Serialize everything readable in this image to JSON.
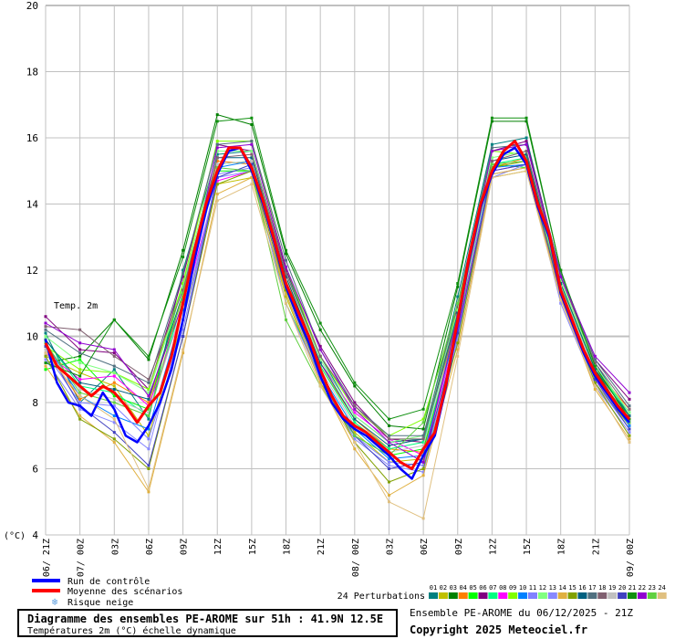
{
  "chart_data": {
    "type": "line",
    "title": "Diagramme des ensembles PE-AROME sur 51h : 41.9N 12.5E",
    "subtitle": "Températures 2m (°C) échelle dynamique",
    "series_label": "Temp. 2m",
    "ylabel": "(°C)",
    "ylim": [
      4,
      20
    ],
    "yticks": [
      4,
      6,
      8,
      10,
      12,
      14,
      16,
      18,
      20
    ],
    "grid": true,
    "xticks": [
      "06/ 21Z",
      "07/ 00Z",
      "03Z",
      "06Z",
      "09Z",
      "12Z",
      "15Z",
      "18Z",
      "21Z",
      "08/ 00Z",
      "03Z",
      "06Z",
      "09Z",
      "12Z",
      "15Z",
      "18Z",
      "21Z",
      "09/ 00Z"
    ],
    "x_hours_range": [
      0,
      51
    ],
    "mean": {
      "name": "Moyenne des scénarios",
      "color": "#ff0000",
      "step_hours": 1,
      "values": [
        9.8,
        9.1,
        8.8,
        8.5,
        8.2,
        8.5,
        8.3,
        7.9,
        7.4,
        7.9,
        8.3,
        9.4,
        11.0,
        12.6,
        14.0,
        15.0,
        15.7,
        15.7,
        15.1,
        14.1,
        12.9,
        11.6,
        10.8,
        10.0,
        9.0,
        8.2,
        7.6,
        7.3,
        7.1,
        6.8,
        6.5,
        6.2,
        6.0,
        6.6,
        7.1,
        8.6,
        10.5,
        12.4,
        14.0,
        15.0,
        15.6,
        15.9,
        15.3,
        14.0,
        13.1,
        11.4,
        10.5,
        9.6,
        8.9,
        8.4,
        7.9,
        7.5
      ]
    },
    "control": {
      "name": "Run de contrôle",
      "color": "#0000ff",
      "step_hours": 1,
      "values": [
        9.9,
        8.6,
        8.0,
        7.9,
        7.6,
        8.3,
        7.8,
        7.0,
        6.8,
        7.3,
        8.0,
        9.0,
        10.5,
        12.3,
        13.8,
        14.9,
        15.6,
        15.7,
        15.0,
        14.0,
        12.8,
        11.5,
        10.6,
        9.8,
        8.8,
        8.0,
        7.5,
        7.2,
        7.0,
        6.7,
        6.4,
        6.0,
        5.7,
        6.4,
        7.0,
        8.5,
        10.4,
        12.3,
        13.9,
        14.9,
        15.5,
        15.7,
        15.2,
        13.9,
        13.0,
        11.3,
        10.4,
        9.5,
        8.8,
        8.3,
        7.8,
        7.4
      ]
    },
    "perturbations_label": "24 Perturbations",
    "perturbations": [
      {
        "name": "01",
        "color": "#008080",
        "values": [
          10.1,
          8.0,
          9.0,
          7.5,
          12.0,
          15.5,
          15.6,
          12.0,
          9.4,
          7.6,
          6.8,
          6.9,
          11.2,
          15.8,
          16.0,
          11.8,
          9.2,
          7.6
        ]
      },
      {
        "name": "02",
        "color": "#c0c000",
        "values": [
          9.4,
          8.9,
          8.5,
          7.0,
          10.5,
          14.6,
          14.8,
          11.2,
          8.6,
          7.1,
          6.2,
          6.3,
          10.0,
          14.8,
          15.0,
          11.2,
          8.6,
          7.3
        ]
      },
      {
        "name": "03",
        "color": "#008000",
        "values": [
          9.2,
          9.4,
          10.5,
          9.3,
          12.6,
          16.7,
          16.4,
          12.5,
          10.2,
          8.5,
          7.3,
          7.2,
          11.5,
          16.5,
          16.5,
          12.0,
          9.0,
          7.4
        ]
      },
      {
        "name": "04",
        "color": "#ff8000",
        "values": [
          9.6,
          8.1,
          8.6,
          8.0,
          11.2,
          15.3,
          15.2,
          11.8,
          9.1,
          7.5,
          6.6,
          6.5,
          10.6,
          15.1,
          15.4,
          11.6,
          9.0,
          7.8
        ]
      },
      {
        "name": "05",
        "color": "#00ff00",
        "values": [
          9.0,
          9.3,
          8.2,
          7.8,
          11.6,
          15.0,
          15.0,
          11.0,
          8.8,
          7.0,
          6.4,
          6.6,
          10.3,
          15.2,
          15.1,
          11.3,
          8.8,
          7.6
        ]
      },
      {
        "name": "06",
        "color": "#800080",
        "values": [
          10.6,
          9.6,
          9.5,
          8.4,
          11.8,
          15.8,
          15.6,
          12.0,
          9.7,
          8.0,
          6.9,
          6.8,
          10.9,
          15.6,
          15.9,
          11.9,
          9.3,
          8.1
        ]
      },
      {
        "name": "07",
        "color": "#00ff80",
        "values": [
          9.9,
          8.5,
          8.3,
          7.6,
          11.1,
          15.2,
          15.3,
          11.6,
          9.1,
          7.4,
          6.6,
          6.8,
          10.6,
          15.2,
          15.4,
          11.5,
          9.0,
          7.7
        ]
      },
      {
        "name": "08",
        "color": "#ff00ff",
        "values": [
          9.5,
          8.7,
          8.8,
          7.9,
          10.8,
          14.7,
          15.0,
          11.4,
          9.2,
          7.7,
          6.9,
          6.4,
          10.2,
          15.0,
          15.2,
          11.3,
          8.7,
          7.4
        ]
      },
      {
        "name": "09",
        "color": "#80ff00",
        "values": [
          9.7,
          9.0,
          8.9,
          8.4,
          11.6,
          15.9,
          15.9,
          12.1,
          9.4,
          7.8,
          7.0,
          7.5,
          10.8,
          15.6,
          15.5,
          11.6,
          9.0,
          7.6
        ]
      },
      {
        "name": "10",
        "color": "#0080ff",
        "values": [
          9.8,
          8.2,
          7.6,
          7.2,
          10.8,
          15.1,
          15.3,
          11.5,
          8.9,
          7.2,
          6.3,
          6.4,
          10.4,
          15.1,
          15.2,
          11.4,
          8.8,
          7.3
        ]
      },
      {
        "name": "11",
        "color": "#8080ff",
        "values": [
          9.5,
          8.0,
          7.9,
          6.9,
          10.2,
          14.9,
          15.1,
          11.3,
          8.7,
          7.0,
          6.2,
          6.1,
          10.0,
          14.9,
          15.1,
          11.1,
          8.6,
          7.2
        ]
      },
      {
        "name": "12",
        "color": "#80ff80",
        "values": [
          10.0,
          9.2,
          8.9,
          8.3,
          11.5,
          15.6,
          15.6,
          11.9,
          9.3,
          7.6,
          6.8,
          7.0,
          10.8,
          15.4,
          15.6,
          11.7,
          9.1,
          7.7
        ]
      },
      {
        "name": "13",
        "color": "#8888ff",
        "values": [
          9.3,
          7.8,
          7.4,
          6.6,
          10.5,
          14.8,
          15.0,
          11.0,
          8.7,
          6.9,
          6.1,
          5.9,
          9.9,
          14.8,
          15.2,
          11.0,
          8.5,
          7.1
        ]
      },
      {
        "name": "14",
        "color": "#e0b040",
        "values": [
          9.1,
          7.6,
          6.8,
          5.3,
          9.5,
          14.3,
          14.8,
          11.3,
          8.6,
          6.6,
          5.2,
          5.8,
          9.6,
          14.9,
          15.1,
          11.2,
          8.4,
          6.9
        ]
      },
      {
        "name": "15",
        "color": "#80a000",
        "values": [
          9.4,
          7.5,
          6.9,
          6.0,
          10.0,
          14.6,
          15.0,
          11.4,
          8.8,
          6.8,
          5.6,
          6.0,
          9.8,
          15.1,
          15.3,
          11.3,
          8.6,
          7.0
        ]
      },
      {
        "name": "16",
        "color": "#006080",
        "values": [
          9.9,
          8.6,
          8.4,
          8.1,
          11.3,
          15.4,
          15.4,
          11.8,
          9.2,
          7.5,
          6.7,
          6.9,
          10.7,
          15.3,
          15.5,
          11.6,
          9.0,
          7.6
        ]
      },
      {
        "name": "17",
        "color": "#507080",
        "values": [
          10.2,
          9.5,
          9.1,
          8.6,
          11.9,
          15.8,
          15.9,
          12.3,
          9.6,
          7.9,
          7.0,
          7.0,
          11.0,
          15.7,
          15.8,
          11.9,
          9.3,
          7.9
        ]
      },
      {
        "name": "18",
        "color": "#806070",
        "values": [
          10.3,
          10.2,
          9.4,
          8.7,
          11.4,
          15.4,
          15.5,
          11.9,
          9.4,
          7.9,
          6.9,
          6.9,
          10.6,
          15.3,
          15.6,
          11.8,
          9.2,
          7.8
        ]
      },
      {
        "name": "19",
        "color": "#c0c0c0",
        "values": [
          9.6,
          8.4,
          8.1,
          7.7,
          10.9,
          15.2,
          15.3,
          11.7,
          9.0,
          7.3,
          6.5,
          6.7,
          10.4,
          15.2,
          15.3,
          11.5,
          8.9,
          7.5
        ]
      },
      {
        "name": "20",
        "color": "#4040c0",
        "values": [
          9.7,
          7.9,
          7.1,
          6.1,
          10.0,
          14.8,
          15.2,
          11.5,
          8.9,
          7.0,
          6.0,
          6.2,
          10.1,
          15.0,
          15.2,
          11.3,
          8.7,
          7.2
        ]
      },
      {
        "name": "21",
        "color": "#109010",
        "values": [
          9.2,
          8.8,
          10.5,
          9.4,
          12.4,
          16.5,
          16.6,
          12.6,
          10.4,
          8.6,
          7.5,
          7.8,
          11.6,
          16.6,
          16.6,
          12.0,
          9.1,
          7.5
        ]
      },
      {
        "name": "22",
        "color": "#9000d0",
        "values": [
          10.4,
          9.8,
          9.6,
          8.2,
          11.0,
          15.7,
          15.8,
          12.1,
          9.6,
          7.8,
          6.8,
          6.2,
          10.6,
          15.6,
          15.8,
          11.8,
          9.4,
          8.3
        ]
      },
      {
        "name": "23",
        "color": "#60d040",
        "values": [
          9.8,
          8.3,
          8.0,
          7.6,
          11.3,
          15.1,
          15.0,
          10.5,
          8.5,
          7.0,
          6.4,
          7.4,
          11.0,
          15.2,
          15.3,
          11.4,
          8.8,
          7.4
        ]
      },
      {
        "name": "24",
        "color": "#e0c080",
        "values": [
          9.5,
          8.2,
          7.5,
          5.4,
          9.6,
          14.1,
          14.6,
          11.0,
          8.5,
          6.8,
          5.0,
          4.5,
          9.4,
          14.8,
          15.0,
          11.1,
          8.5,
          6.8
        ]
      }
    ],
    "perturbation_step_hours": 3
  },
  "legend": {
    "control": "Run de contrôle",
    "mean": "Moyenne des scénarios",
    "snow": "Risque neige"
  },
  "footer": {
    "title": "Diagramme des ensembles PE-AROME sur 51h : 41.9N 12.5E",
    "subtitle": "Températures 2m (°C) échelle dynamique",
    "ensemble": "Ensemble PE-AROME du 06/12/2025 - 21Z",
    "copyright": "Copyright 2025 Meteociel.fr"
  }
}
